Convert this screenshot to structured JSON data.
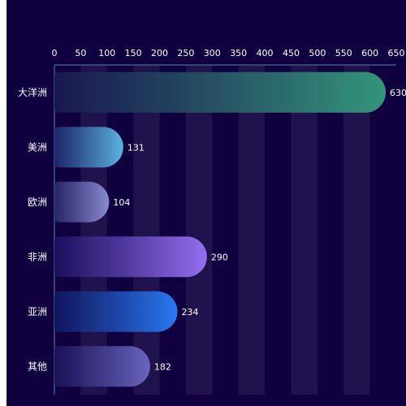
{
  "chart_data": {
    "type": "bar",
    "orientation": "horizontal",
    "categories": [
      "大洋洲",
      "美洲",
      "欧洲",
      "非洲",
      "亚洲",
      "其他"
    ],
    "values": [
      630,
      131,
      104,
      290,
      234,
      182
    ],
    "xlim": [
      0,
      650
    ],
    "x_ticks": [
      0,
      50,
      100,
      150,
      200,
      250,
      300,
      350,
      400,
      450,
      500,
      550,
      600,
      650
    ],
    "x_axis_position": "top",
    "grid": "alternating vertical bands",
    "data_labels": true,
    "bar_colors": [
      [
        "#1a1a52",
        "#34967a"
      ],
      [
        "#1e2a6e",
        "#5ab4e0"
      ],
      [
        "#2a2a6a",
        "#8a8ad0"
      ],
      [
        "#1e1060",
        "#9470f0"
      ],
      [
        "#101860",
        "#2a78f2"
      ],
      [
        "#1a1458",
        "#6a64c0"
      ]
    ],
    "background": "#100040",
    "axis_color": "#3a5a8a"
  }
}
